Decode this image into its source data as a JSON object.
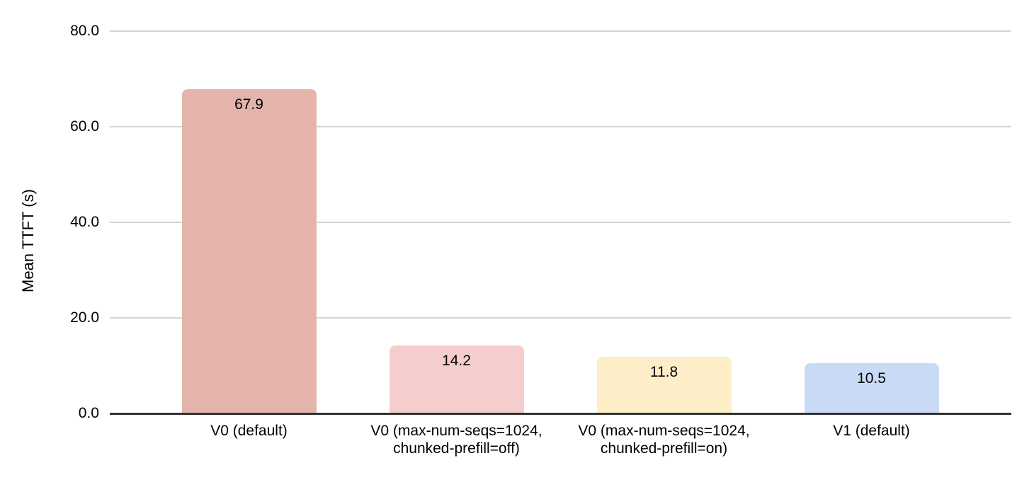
{
  "chart_data": {
    "type": "bar",
    "title": "",
    "ylabel": "Mean TTFT (s)",
    "xlabel": "",
    "categories": [
      "V0 (default)",
      "V0 (max-num-seqs=1024,\nchunked-prefill=off)",
      "V0 (max-num-seqs=1024,\nchunked-prefill=on)",
      "V1 (default)"
    ],
    "values": [
      67.9,
      14.2,
      11.8,
      10.5
    ],
    "data_labels": [
      "67.9",
      "14.2",
      "11.8",
      "10.5"
    ],
    "bar_colors": [
      "#e4b3ab",
      "#f5cdcd",
      "#fdeec7",
      "#c9daf6"
    ],
    "ylim": [
      0,
      80
    ],
    "ytick_values": [
      0,
      20,
      40,
      60,
      80
    ],
    "ytick_labels": [
      "0.0",
      "20.0",
      "40.0",
      "60.0",
      "80.0"
    ],
    "grid": true,
    "legend": false,
    "colors": {
      "gridline": "#d4d4d4",
      "axis_line": "#333333",
      "text": "#000000",
      "background": "#ffffff"
    }
  }
}
